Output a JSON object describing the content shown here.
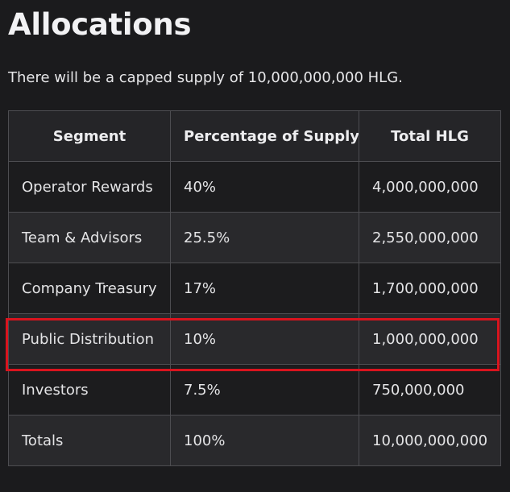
{
  "heading": "Allocations",
  "intro": "There will be a capped supply of 10,000,000,000 HLG.",
  "table": {
    "headers": [
      "Segment",
      "Percentage of Supply",
      "Total HLG"
    ],
    "rows": [
      [
        "Operator Rewards",
        "40%",
        "4,000,000,000"
      ],
      [
        "Team & Advisors",
        "25.5%",
        "2,550,000,000"
      ],
      [
        "Company Treasury",
        "17%",
        "1,700,000,000"
      ],
      [
        "Public Distribution",
        "10%",
        "1,000,000,000"
      ],
      [
        "Investors",
        "7.5%",
        "750,000,000"
      ],
      [
        "Totals",
        "100%",
        "10,000,000,000"
      ]
    ]
  },
  "highlight": {
    "row": "Public Distribution",
    "color": "#d9141e"
  },
  "colors": {
    "background": "#1b1b1d",
    "border": "#4d4d51",
    "header_bg": "#252528",
    "row_alt_bg": "#29292c"
  }
}
